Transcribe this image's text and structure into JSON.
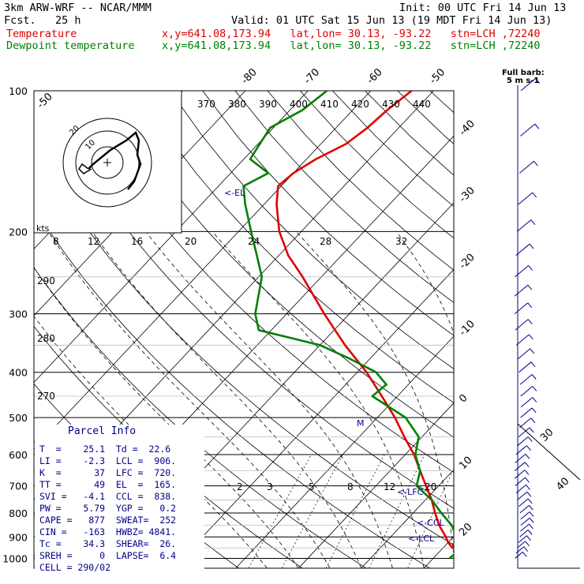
{
  "header": {
    "model": "3km ARW-WRF -- NCAR/MMM",
    "init": "Init: 00 UTC Fri 14 Jun 13",
    "fcst": "Fcst.   25 h",
    "valid": "Valid: 01 UTC Sat 15 Jun 13 (19 MDT Fri 14 Jun 13)",
    "temp_label": "Temperature",
    "dew_label": "Dewpoint temperature",
    "point_info": "x,y=641.08,173.94   lat,lon= 30.13, -93.22   stn=LCH ,72240"
  },
  "colors": {
    "temperature": "#e00000",
    "dewpoint": "#008000",
    "frame": "#000000",
    "labels": "#00008b"
  },
  "chart_data": {
    "type": "line",
    "title": "",
    "pressure_levels": [
      100,
      200,
      300,
      400,
      500,
      600,
      700,
      800,
      900,
      1000
    ],
    "skewed_temp_labels": [
      -80,
      -70,
      -60,
      -50,
      -40,
      -30,
      -20,
      -10,
      0,
      10,
      20,
      30,
      40
    ],
    "theta_e_labels": [
      370,
      380,
      390,
      400,
      410,
      420,
      430,
      440
    ],
    "theta_labels": [
      290,
      280,
      270
    ],
    "mixing_ratio_labels": [
      2,
      3,
      5,
      8,
      12,
      20
    ],
    "theta_left_corner": "8",
    "series": [
      {
        "name": "Temperature",
        "color": "#e00000",
        "points": [
          [
            1000,
            25.1
          ],
          [
            975,
            24.0
          ],
          [
            950,
            21.5
          ],
          [
            925,
            20.0
          ],
          [
            900,
            18.8
          ],
          [
            850,
            16.0
          ],
          [
            800,
            13.5
          ],
          [
            750,
            11.0
          ],
          [
            700,
            8.0
          ],
          [
            650,
            4.8
          ],
          [
            600,
            1.4
          ],
          [
            550,
            -2.8
          ],
          [
            500,
            -7.2
          ],
          [
            450,
            -12.5
          ],
          [
            400,
            -18.5
          ],
          [
            350,
            -26.0
          ],
          [
            300,
            -34.0
          ],
          [
            250,
            -43.0
          ],
          [
            225,
            -48.5
          ],
          [
            200,
            -53.5
          ],
          [
            175,
            -58.0
          ],
          [
            160,
            -60.5
          ],
          [
            150,
            -60.0
          ],
          [
            140,
            -58.5
          ],
          [
            130,
            -56.0
          ],
          [
            120,
            -55.0
          ],
          [
            110,
            -54.5
          ],
          [
            100,
            -53.5
          ]
        ]
      },
      {
        "name": "Dewpoint temperature",
        "color": "#008000",
        "points": [
          [
            1000,
            22.6
          ],
          [
            975,
            22.8
          ],
          [
            950,
            22.0
          ],
          [
            925,
            21.4
          ],
          [
            900,
            20.5
          ],
          [
            850,
            18.0
          ],
          [
            800,
            14.5
          ],
          [
            750,
            11.0
          ],
          [
            700,
            6.5
          ],
          [
            650,
            4.8
          ],
          [
            600,
            1.6
          ],
          [
            550,
            -0.5
          ],
          [
            500,
            -5.5
          ],
          [
            450,
            -14.0
          ],
          [
            425,
            -13.5
          ],
          [
            400,
            -17.0
          ],
          [
            375,
            -23.0
          ],
          [
            350,
            -30.0
          ],
          [
            325,
            -42.0
          ],
          [
            300,
            -45.0
          ],
          [
            250,
            -49.5
          ],
          [
            225,
            -53.5
          ],
          [
            200,
            -58.0
          ],
          [
            175,
            -63.0
          ],
          [
            160,
            -66.0
          ],
          [
            150,
            -64.0
          ],
          [
            140,
            -69.0
          ],
          [
            120,
            -70.5
          ],
          [
            110,
            -68.0
          ],
          [
            100,
            -67.0
          ]
        ]
      }
    ],
    "annotations": [
      {
        "text": "<-EL",
        "p": 165
      },
      {
        "text": "<-LFC",
        "p": 720
      },
      {
        "text": "<-CCL",
        "p": 838
      },
      {
        "text": "<-LCL",
        "p": 906
      }
    ],
    "hodograph": {
      "speed_unit": "kts",
      "ring_labels": [
        "10",
        "20"
      ]
    },
    "wind_panel": {
      "label": "Full barb:",
      "unit": "5 m s-1",
      "speed_labels": [
        "30",
        "40"
      ]
    }
  },
  "parcel": {
    "title": "Parcel Info",
    "rows": [
      "T  =    25.1  Td =  22.6",
      "LI =    -2.3  LCL =  906.",
      "K  =      37  LFC =  720.",
      "TT =      49  EL  =  165.",
      "SVI =   -4.1  CCL =  838.",
      "PW =    5.79  YGP =   0.2",
      "CAPE =   877  SWEAT=  252",
      "CIN =   -163  HWBZ= 4841.",
      "Tc =    34.3  SHEAR=  26.",
      "SREH =     0  LAPSE=  6.4",
      "CELL = 290/02"
    ]
  }
}
